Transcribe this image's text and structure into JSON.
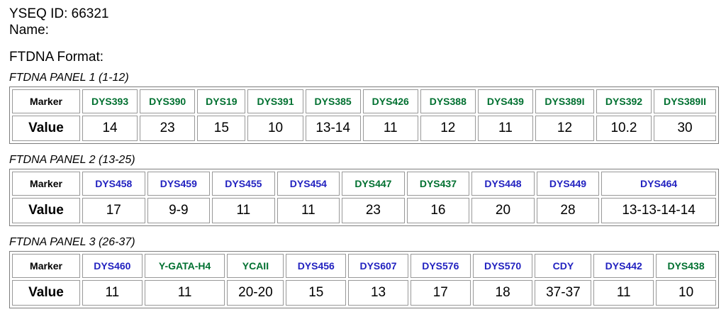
{
  "page": {
    "yseq_id": "YSEQ ID: 66321",
    "name_line": "Name:",
    "format_heading": "FTDNA Format:"
  },
  "table_labels": {
    "marker": "Marker",
    "value": "Value"
  },
  "colors": {
    "green": "#007030",
    "blue": "#2222C0",
    "text": "#000000",
    "outer_border": "#7d7d7d",
    "cell_border": "#989898"
  },
  "panels": [
    {
      "caption": "FTDNA PANEL 1 (1-12)",
      "markers": [
        {
          "name": "DYS393",
          "color": "green",
          "value": "14"
        },
        {
          "name": "DYS390",
          "color": "green",
          "value": "23"
        },
        {
          "name": "DYS19",
          "color": "green",
          "value": "15"
        },
        {
          "name": "DYS391",
          "color": "green",
          "value": "10"
        },
        {
          "name": "DYS385",
          "color": "green",
          "value": "13-14"
        },
        {
          "name": "DYS426",
          "color": "green",
          "value": "11"
        },
        {
          "name": "DYS388",
          "color": "green",
          "value": "12"
        },
        {
          "name": "DYS439",
          "color": "green",
          "value": "11"
        },
        {
          "name": "DYS389I",
          "color": "green",
          "value": "12"
        },
        {
          "name": "DYS392",
          "color": "green",
          "value": "10.2"
        },
        {
          "name": "DYS389II",
          "color": "green",
          "value": "30"
        }
      ]
    },
    {
      "caption": "FTDNA PANEL 2 (13-25)",
      "markers": [
        {
          "name": "DYS458",
          "color": "blue",
          "value": "17"
        },
        {
          "name": "DYS459",
          "color": "blue",
          "value": "9-9"
        },
        {
          "name": "DYS455",
          "color": "blue",
          "value": "11"
        },
        {
          "name": "DYS454",
          "color": "blue",
          "value": "11"
        },
        {
          "name": "DYS447",
          "color": "green",
          "value": "23"
        },
        {
          "name": "DYS437",
          "color": "green",
          "value": "16"
        },
        {
          "name": "DYS448",
          "color": "blue",
          "value": "20"
        },
        {
          "name": "DYS449",
          "color": "blue",
          "value": "28"
        },
        {
          "name": "DYS464",
          "color": "blue",
          "value": "13-13-14-14"
        }
      ]
    },
    {
      "caption": "FTDNA PANEL 3 (26-37)",
      "markers": [
        {
          "name": "DYS460",
          "color": "blue",
          "value": "11"
        },
        {
          "name": "Y-GATA-H4",
          "color": "green",
          "value": "11"
        },
        {
          "name": "YCAII",
          "color": "green",
          "value": "20-20"
        },
        {
          "name": "DYS456",
          "color": "blue",
          "value": "15"
        },
        {
          "name": "DYS607",
          "color": "blue",
          "value": "13"
        },
        {
          "name": "DYS576",
          "color": "blue",
          "value": "17"
        },
        {
          "name": "DYS570",
          "color": "blue",
          "value": "18"
        },
        {
          "name": "CDY",
          "color": "blue",
          "value": "37-37"
        },
        {
          "name": "DYS442",
          "color": "blue",
          "value": "11"
        },
        {
          "name": "DYS438",
          "color": "green",
          "value": "10"
        }
      ]
    }
  ]
}
